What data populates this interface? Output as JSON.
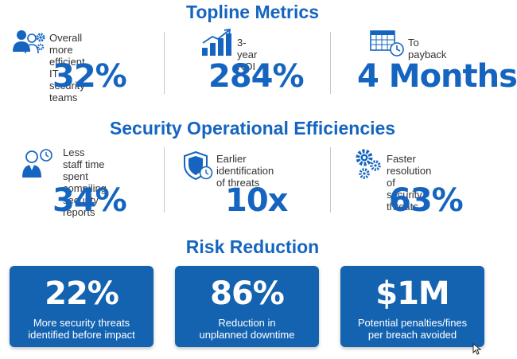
{
  "sections": {
    "topline": {
      "title": "Topline Metrics",
      "metrics": [
        {
          "label_line1": "Overall more efficient",
          "label_line2": "IT security teams",
          "value": "32%",
          "icon": "users-gear-icon"
        },
        {
          "label_line1": "3-year ROI",
          "value": "284%",
          "icon": "bar-chart-up-icon"
        },
        {
          "label_line1": "To payback",
          "value": "4 Months",
          "icon": "calendar-clock-icon"
        }
      ]
    },
    "efficiencies": {
      "title": "Security Operational Efficiencies",
      "metrics": [
        {
          "label_line1": "Less staff time",
          "label_line2": "spent compiling",
          "label_line3": "security reports",
          "value": "34%",
          "icon": "person-clock-icon"
        },
        {
          "label_line1": "Earlier identification",
          "label_line2": "of threats",
          "value": "10x",
          "icon": "shield-clock-icon"
        },
        {
          "label_line1": "Faster resolution",
          "label_line2": "of security threats",
          "value": "63%",
          "icon": "gears-icon"
        }
      ]
    },
    "risk": {
      "title": "Risk Reduction",
      "cards": [
        {
          "value": "22%",
          "desc_line1": "More security threats",
          "desc_line2": "identified before impact"
        },
        {
          "value": "86%",
          "desc_line1": "Reduction in",
          "desc_line2": "unplanned downtime"
        },
        {
          "value": "$1M",
          "desc_line1": "Potential penalties/fines",
          "desc_line2": "per breach avoided"
        }
      ]
    }
  },
  "colors": {
    "accent": "#1565c0",
    "card_bg": "#1463b0",
    "text": "#333333",
    "divider": "#c8c8c8"
  }
}
